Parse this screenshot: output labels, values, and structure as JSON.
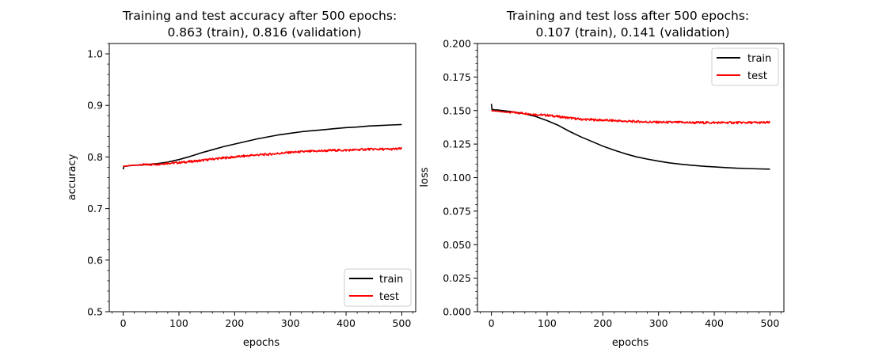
{
  "chart_data": [
    {
      "type": "line",
      "title_line1": "Training and test accuracy after 500 epochs:",
      "title_line2": "0.863 (train), 0.816 (validation)",
      "xlabel": "epochs",
      "ylabel": "accuracy",
      "xlim": [
        -25,
        525
      ],
      "ylim": [
        0.5,
        1.02
      ],
      "xticks": [
        0,
        100,
        200,
        300,
        400,
        500
      ],
      "yticks": [
        0.5,
        0.6,
        0.7,
        0.8,
        0.9,
        1.0
      ],
      "ytick_labels": [
        "0.5",
        "0.6",
        "0.7",
        "0.8",
        "0.9",
        "1.0"
      ],
      "legend_position": "lower-right",
      "series": [
        {
          "name": "train",
          "color": "#000000",
          "x": [
            0,
            1,
            2,
            5,
            10,
            20,
            40,
            60,
            80,
            100,
            120,
            140,
            160,
            180,
            200,
            220,
            240,
            260,
            280,
            300,
            320,
            340,
            360,
            380,
            400,
            420,
            440,
            460,
            480,
            500
          ],
          "y": [
            0.776,
            0.781,
            0.782,
            0.782,
            0.783,
            0.784,
            0.785,
            0.787,
            0.79,
            0.795,
            0.801,
            0.808,
            0.814,
            0.82,
            0.825,
            0.83,
            0.835,
            0.839,
            0.843,
            0.846,
            0.849,
            0.851,
            0.853,
            0.855,
            0.857,
            0.858,
            0.86,
            0.861,
            0.862,
            0.863
          ]
        },
        {
          "name": "test",
          "color": "#ff0000",
          "x": [
            0,
            20,
            40,
            60,
            80,
            100,
            120,
            140,
            160,
            180,
            200,
            220,
            240,
            260,
            280,
            300,
            320,
            340,
            360,
            380,
            400,
            420,
            440,
            460,
            480,
            500
          ],
          "y": [
            0.782,
            0.784,
            0.785,
            0.786,
            0.788,
            0.789,
            0.791,
            0.793,
            0.796,
            0.798,
            0.8,
            0.802,
            0.804,
            0.805,
            0.807,
            0.809,
            0.81,
            0.811,
            0.812,
            0.813,
            0.813,
            0.814,
            0.815,
            0.815,
            0.815,
            0.816
          ]
        }
      ]
    },
    {
      "type": "line",
      "title_line1": "Training and test loss after 500 epochs:",
      "title_line2": "0.107 (train), 0.141 (validation)",
      "xlabel": "epochs",
      "ylabel": "loss",
      "xlim": [
        -25,
        525
      ],
      "ylim": [
        0.0,
        0.2
      ],
      "xticks": [
        0,
        100,
        200,
        300,
        400,
        500
      ],
      "yticks": [
        0.0,
        0.025,
        0.05,
        0.075,
        0.1,
        0.125,
        0.15,
        0.175,
        0.2
      ],
      "ytick_labels": [
        "0.000",
        "0.025",
        "0.050",
        "0.075",
        "0.100",
        "0.125",
        "0.150",
        "0.175",
        "0.200"
      ],
      "legend_position": "top-right",
      "series": [
        {
          "name": "train",
          "color": "#000000",
          "x": [
            0,
            1,
            2,
            5,
            10,
            20,
            40,
            60,
            80,
            100,
            120,
            140,
            160,
            180,
            200,
            220,
            240,
            260,
            280,
            300,
            320,
            340,
            360,
            380,
            400,
            420,
            440,
            460,
            480,
            500
          ],
          "y": [
            0.155,
            0.151,
            0.151,
            0.1505,
            0.1505,
            0.15,
            0.149,
            0.1475,
            0.1455,
            0.1425,
            0.139,
            0.1345,
            0.1305,
            0.127,
            0.1235,
            0.1205,
            0.1178,
            0.1155,
            0.1138,
            0.1123,
            0.111,
            0.11,
            0.1092,
            0.1085,
            0.108,
            0.1075,
            0.107,
            0.1068,
            0.1065,
            0.1063
          ]
        },
        {
          "name": "test",
          "color": "#ff0000",
          "x": [
            0,
            20,
            40,
            60,
            80,
            100,
            120,
            140,
            160,
            180,
            200,
            220,
            240,
            260,
            280,
            300,
            320,
            340,
            360,
            380,
            400,
            420,
            440,
            460,
            480,
            500
          ],
          "y": [
            0.15,
            0.149,
            0.1485,
            0.148,
            0.147,
            0.1465,
            0.1455,
            0.1445,
            0.1435,
            0.1432,
            0.1428,
            0.1425,
            0.142,
            0.1418,
            0.1415,
            0.1413,
            0.1412,
            0.1412,
            0.141,
            0.141,
            0.141,
            0.141,
            0.141,
            0.141,
            0.141,
            0.141
          ]
        }
      ]
    }
  ]
}
